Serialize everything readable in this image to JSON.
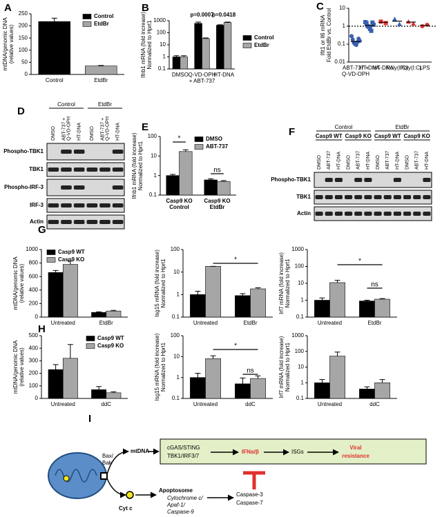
{
  "panel_letters": [
    "A",
    "B",
    "C",
    "D",
    "E",
    "F",
    "G",
    "H",
    "I"
  ],
  "chart_data": [
    {
      "type": "bar",
      "ylabel": [
        "mtDNA/genomic DNA",
        "(relative values)"
      ],
      "categories": [
        [
          "Control"
        ],
        [
          "EtdBr"
        ]
      ],
      "series": [
        {
          "name": "Control",
          "color": "#000000",
          "values": [
            218,
            null
          ],
          "errors": [
            14,
            null
          ]
        },
        {
          "name": "EtdBr",
          "color": "#a6a6a6",
          "values": [
            null,
            35
          ],
          "errors": [
            null,
            2
          ]
        }
      ],
      "ylim": [
        0,
        250
      ],
      "yticks": [
        0,
        50,
        100,
        150,
        200,
        250
      ],
      "legend": "upper right"
    },
    {
      "type": "bar",
      "ylabel": [
        "Ifnb1 mRNA (fold increase)",
        "Normalized to Hprt1"
      ],
      "categories": [
        [
          "DMSO"
        ],
        [
          "Q-VD-OPH",
          "+ ABT-737"
        ],
        [
          "HT-DNA"
        ]
      ],
      "series": [
        {
          "name": "Control",
          "color": "#000000",
          "values": [
            1,
            600,
            420
          ],
          "errors": [
            0.25,
            170,
            40
          ]
        },
        {
          "name": "EtdBr",
          "color": "#a6a6a6",
          "values": [
            1,
            33,
            700
          ],
          "errors": [
            0.25,
            4,
            70
          ]
        }
      ],
      "ylim": [
        0.1,
        1000
      ],
      "yticks": [
        0.1,
        1,
        10,
        100,
        1000
      ],
      "yscale": "log",
      "legend": "right",
      "annotations": [
        "p=0.0007",
        "p=0.0418"
      ]
    },
    {
      "type": "scatter",
      "ylabel": [
        "Ifit1 or Il6 mRNA",
        "Fold EtdBr vs. Control"
      ],
      "ylim": [
        0.01,
        10
      ],
      "yticks": [
        0.01,
        0.1,
        1,
        10
      ],
      "yscale": "log",
      "reference_line": 1,
      "groups": [
        {
          "label": [
            "ABT-737 +",
            "Q-VD-OPH"
          ],
          "marker": "circle",
          "color": "#3a5fb0",
          "values": [
            0.28,
            0.18,
            0.12,
            0.1,
            0.09,
            0.13,
            0.2,
            0.15
          ],
          "mean": 0.14
        },
        {
          "label": [
            "HT-DNA"
          ],
          "marker": "square",
          "color": "#3a5fb0",
          "values": [
            1.7,
            1.5,
            1.0,
            0.9,
            0.7,
            0.55,
            1.6,
            1.2
          ],
          "mean": 1.1
        },
        {
          "label": [
            "HT-DNA"
          ],
          "marker": "square",
          "color": "#e0302f",
          "values": [
            1.8,
            1.5
          ],
          "mean": 1.65
        },
        {
          "label": [
            "Poly(I:C)"
          ],
          "marker": "triangle",
          "color": "#3a5fb0",
          "values": [
            2.5,
            1.3
          ],
          "mean": 1.9
        },
        {
          "label": [
            "Poly(I:C)"
          ],
          "marker": "triangle",
          "color": "#e0302f",
          "values": [
            1.8,
            1.4
          ],
          "mean": 1.7
        },
        {
          "label": [
            "LPS"
          ],
          "marker": "circle",
          "color": "#e0302f",
          "values": [
            1.0,
            1.2
          ],
          "mean": 1.1
        }
      ]
    },
    {
      "type": "bar",
      "ylabel": [
        "Ifnb1 mRNA (fold increase)",
        "Normalized to Hprt1"
      ],
      "categories": [
        [
          "Casp9 KO",
          "Control"
        ],
        [
          "Casp9 KO",
          "EtdBr"
        ]
      ],
      "series": [
        {
          "name": "DMSO",
          "color": "#000000",
          "values": [
            1,
            0.6
          ],
          "errors": [
            0.15,
            0.08
          ]
        },
        {
          "name": "ABT-737",
          "color": "#a6a6a6",
          "values": [
            17,
            0.5
          ],
          "errors": [
            4,
            0.05
          ]
        }
      ],
      "ylim": [
        0.1,
        100
      ],
      "yticks": [
        0.1,
        1,
        10,
        100
      ],
      "yscale": "log",
      "legend": "upper right",
      "annotations": [
        "*",
        "ns"
      ]
    },
    {
      "type": "bar",
      "ylabel": [
        "mtDNA/genomic DNA",
        "(relative values)"
      ],
      "categories": [
        [
          "Untreated"
        ],
        [
          "EtdBr"
        ]
      ],
      "series": [
        {
          "name": "Casp9 WT",
          "color": "#000000",
          "values": [
            660,
            70
          ],
          "errors": [
            30,
            8
          ]
        },
        {
          "name": "Casp9 KO",
          "color": "#a6a6a6",
          "values": [
            780,
            90
          ],
          "errors": [
            50,
            10
          ]
        }
      ],
      "ylim": [
        0,
        1000
      ],
      "yticks": [
        0,
        200,
        400,
        600,
        800,
        1000
      ],
      "legend": "upper left"
    },
    {
      "type": "bar",
      "ylabel": [
        "Isg15 mRNA (fold increase)",
        "Normalized to Hprt1"
      ],
      "categories": [
        [
          "Untreated"
        ],
        [
          "EtdBr"
        ]
      ],
      "series": [
        {
          "color": "#000000",
          "values": [
            1,
            0.9
          ],
          "errors": [
            0.4,
            0.2
          ]
        },
        {
          "color": "#a6a6a6",
          "values": [
            18,
            1.8
          ],
          "errors": [
            0,
            0.2
          ]
        }
      ],
      "ylim": [
        0.1,
        100
      ],
      "yticks": [
        0.1,
        1,
        10,
        100
      ],
      "yscale": "log",
      "annotations": [
        "*"
      ]
    },
    {
      "type": "bar",
      "ylabel": [
        "Irf7 mRNA (fold increase)",
        "Normalized to Hprt1"
      ],
      "categories": [
        [
          "Untreated"
        ],
        [
          "EtdBr"
        ]
      ],
      "series": [
        {
          "color": "#000000",
          "values": [
            1,
            0.9
          ],
          "errors": [
            0.35,
            0.1
          ]
        },
        {
          "color": "#a6a6a6",
          "values": [
            11,
            1.15
          ],
          "errors": [
            4,
            0.1
          ]
        }
      ],
      "ylim": [
        0.1,
        1000
      ],
      "yticks": [
        0.1,
        1,
        10,
        100,
        1000
      ],
      "yscale": "log",
      "annotations": [
        "*",
        "ns"
      ]
    },
    {
      "type": "bar",
      "ylabel": [
        "mtDNA/genomic DNA",
        "(relative values)"
      ],
      "categories": [
        [
          "Untreated"
        ],
        [
          "ddC"
        ]
      ],
      "series": [
        {
          "name": "Casp9 WT",
          "color": "#000000",
          "values": [
            230,
            70
          ],
          "errors": [
            40,
            25
          ]
        },
        {
          "name": "Casp9 KO",
          "color": "#a6a6a6",
          "values": [
            320,
            45
          ],
          "errors": [
            110,
            8
          ]
        }
      ],
      "ylim": [
        0,
        500
      ],
      "yticks": [
        0,
        100,
        200,
        300,
        400,
        500
      ],
      "legend": "upper right"
    },
    {
      "type": "bar",
      "ylabel": [
        "Isg15 mRNA (fold increase)",
        "Normalized to Hprt1"
      ],
      "categories": [
        [
          "Untreated"
        ],
        [
          "ddC"
        ]
      ],
      "series": [
        {
          "color": "#000000",
          "values": [
            1,
            0.5
          ],
          "errors": [
            0.6,
            0.45
          ]
        },
        {
          "color": "#a6a6a6",
          "values": [
            8,
            0.9
          ],
          "errors": [
            3,
            0.3
          ]
        }
      ],
      "ylim": [
        0.1,
        100
      ],
      "yticks": [
        0.1,
        1,
        10,
        100
      ],
      "yscale": "log",
      "annotations": [
        "*",
        "ns"
      ]
    },
    {
      "type": "bar",
      "ylabel": [
        "Irf7 mRNA (fold increase)",
        "Normalized to Hprt1"
      ],
      "categories": [
        [
          "Untreated"
        ],
        [
          "ddC"
        ]
      ],
      "series": [
        {
          "color": "#000000",
          "values": [
            1,
            0.4
          ],
          "errors": [
            0.6,
            0.15
          ]
        },
        {
          "color": "#a6a6a6",
          "values": [
            50,
            1.0
          ],
          "errors": [
            40,
            0.6
          ]
        }
      ],
      "ylim": [
        0.1,
        1000
      ],
      "yticks": [
        0.1,
        1,
        10,
        100,
        1000
      ],
      "yscale": "log"
    }
  ],
  "blots": [
    {
      "groups": [
        "Control",
        "EtdBr"
      ],
      "lanes": [
        [
          "DMSO"
        ],
        [
          "ABT-737 +",
          "Q-VD-OPH"
        ],
        [
          "HT-DNA"
        ],
        [
          "DMSO"
        ],
        [
          "ABT-737 +",
          "Q-VD-OPH"
        ],
        [
          "HT-DNA"
        ]
      ],
      "rows": [
        "Phospho-TBK1",
        "TBK1",
        "Phospho-IRF-3",
        "IRF-3",
        "Actin"
      ]
    },
    {
      "groups": [
        "Control",
        "EtdBr"
      ],
      "subgroups": [
        "Casp9 WT",
        "Casp9 KO",
        "Casp9 WT",
        "Casp9 KO"
      ],
      "lanes": [
        [
          "DMSO"
        ],
        [
          "ABT-737"
        ],
        [
          "HT-DNA"
        ],
        [
          "DMSO"
        ],
        [
          "ABT-737"
        ],
        [
          "HT-DNA"
        ],
        [
          "DMSO"
        ],
        [
          "ABT-737"
        ],
        [
          "HT-DNA"
        ],
        [
          "DMSO"
        ],
        [
          "ABT-737"
        ],
        [
          "HT-DNA"
        ]
      ],
      "rows": [
        "Phospho-TBK1",
        "TBK1",
        "Actin"
      ]
    }
  ],
  "diagram": {
    "bax_bak": [
      "Bax/",
      "Bak"
    ],
    "mtdna": "mtDNA",
    "pathway": [
      "cGAS/STING",
      "TBK1/IRF3/7"
    ],
    "ifn": "IFNα/β",
    "isgs": "ISGs",
    "viral": [
      "Viral",
      "resistance"
    ],
    "cytc": "Cyt c",
    "apoptosome": "Apoptosome",
    "apoptosome_parts": [
      "Cytochrome c/",
      "Apaf-1/",
      "Caspase-9"
    ],
    "caspases": [
      "Caspase-3",
      "Caspase-7"
    ]
  }
}
